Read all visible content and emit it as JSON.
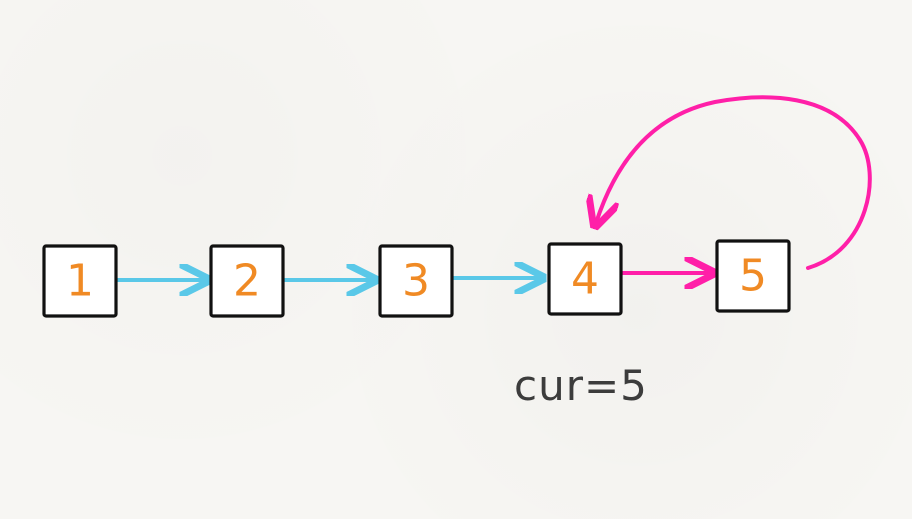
{
  "diagram": {
    "nodes": [
      {
        "label": "1"
      },
      {
        "label": "2"
      },
      {
        "label": "3"
      },
      {
        "label": "4"
      },
      {
        "label": "5"
      }
    ],
    "pointer_label": "cur=5",
    "colors": {
      "background": "#f7f6f3",
      "node_border": "#111111",
      "node_text": "#f08a24",
      "forward_arrow": "#5ac8e8",
      "cycle_arrow": "#ff1fa8",
      "caption": "#3c3c3c"
    }
  }
}
